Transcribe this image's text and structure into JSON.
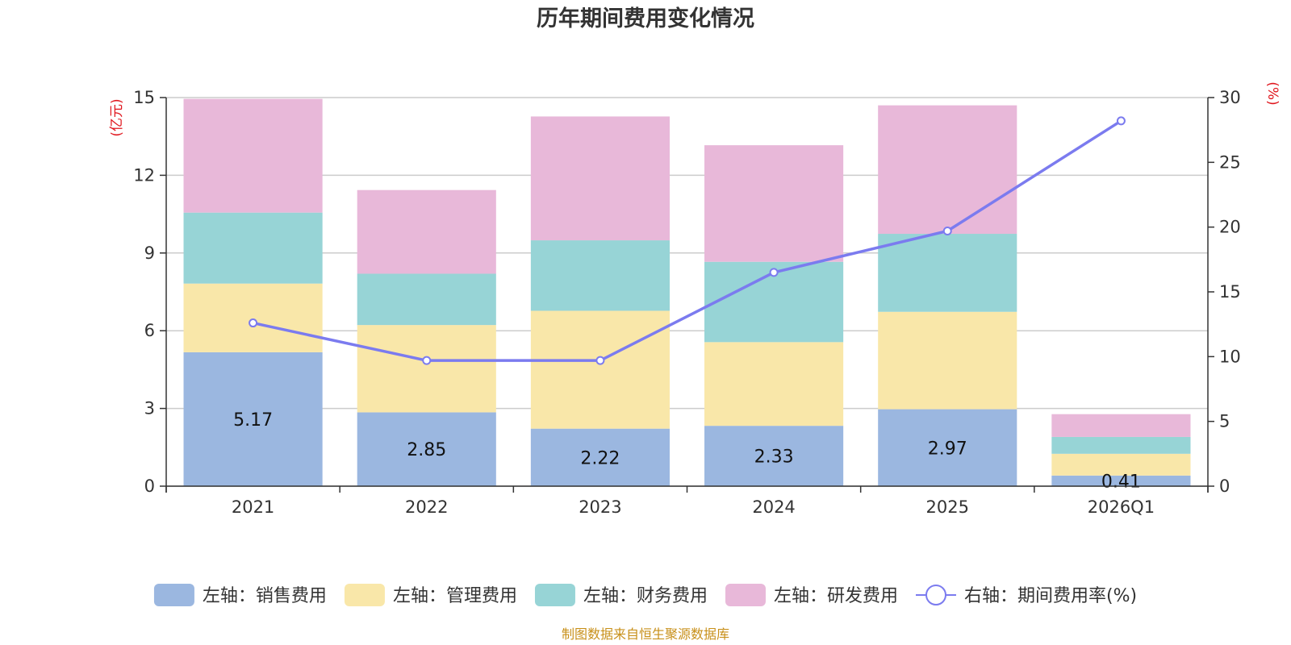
{
  "chart_data": {
    "type": "bar",
    "title": "历年期间费用变化情况",
    "categories": [
      "2021",
      "2022",
      "2023",
      "2024",
      "2025",
      "2026Q1"
    ],
    "y_left": {
      "unit": "(亿元)",
      "min": 0,
      "max": 15,
      "ticks": [
        "0",
        "3",
        "6",
        "9",
        "12",
        "15"
      ]
    },
    "y_right": {
      "unit": "(%)",
      "min": 0,
      "max": 30,
      "ticks": [
        "0",
        "5",
        "10",
        "15",
        "20",
        "25",
        "30"
      ]
    },
    "grid": true,
    "legend_position": "bottom",
    "series": [
      {
        "name": "左轴：销售费用",
        "axis": "left",
        "type": "bar",
        "color": "#9bb7e0",
        "values": [
          5.17,
          2.85,
          2.22,
          2.33,
          2.97,
          0.41
        ],
        "labels": [
          "5.17",
          "2.85",
          "2.22",
          "2.33",
          "2.97",
          "0.41"
        ]
      },
      {
        "name": "左轴：管理费用",
        "axis": "left",
        "type": "bar",
        "color": "#f9e7a9",
        "values": [
          2.65,
          3.37,
          4.55,
          3.23,
          3.76,
          0.84
        ]
      },
      {
        "name": "左轴：财务费用",
        "axis": "left",
        "type": "bar",
        "color": "#97d4d6",
        "values": [
          2.74,
          1.98,
          2.72,
          3.1,
          3.01,
          0.65
        ]
      },
      {
        "name": "左轴：研发费用",
        "axis": "left",
        "type": "bar",
        "color": "#e8b8d9",
        "values": [
          4.39,
          3.23,
          4.78,
          4.5,
          4.96,
          0.88
        ]
      },
      {
        "name": "右轴：期间费用率(%)",
        "axis": "right",
        "type": "line",
        "color": "#7b7bef",
        "values": [
          12.6,
          9.7,
          9.7,
          16.5,
          19.7,
          28.2
        ]
      }
    ]
  },
  "source": "制图数据来自恒生聚源数据库"
}
